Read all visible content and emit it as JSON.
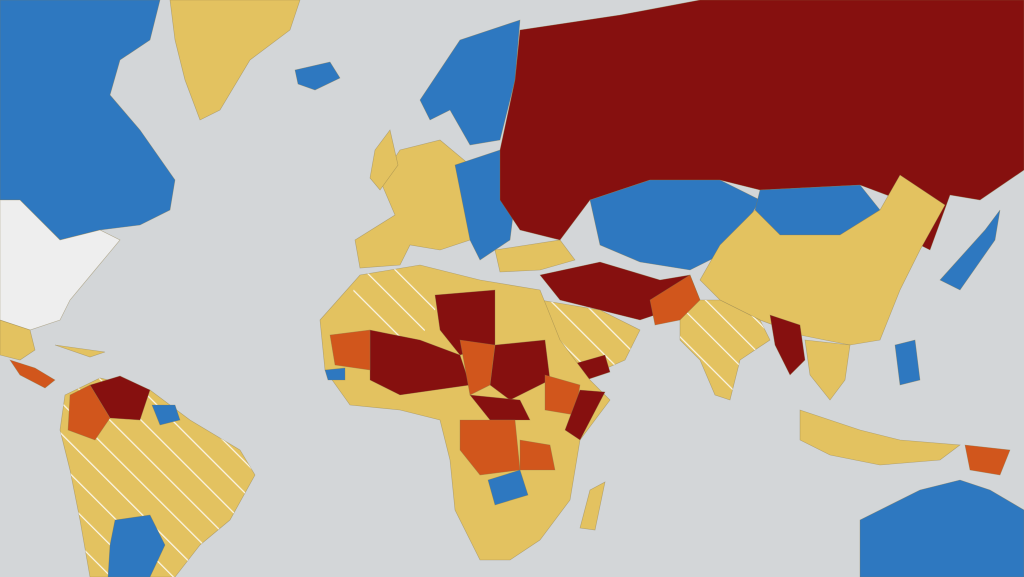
{
  "map": {
    "ocean": "#d3d6d8",
    "colors": [
      "#2e78c0",
      "#e3c260",
      "#86100f",
      "#d1561c",
      "#eeeeee"
    ]
  }
}
